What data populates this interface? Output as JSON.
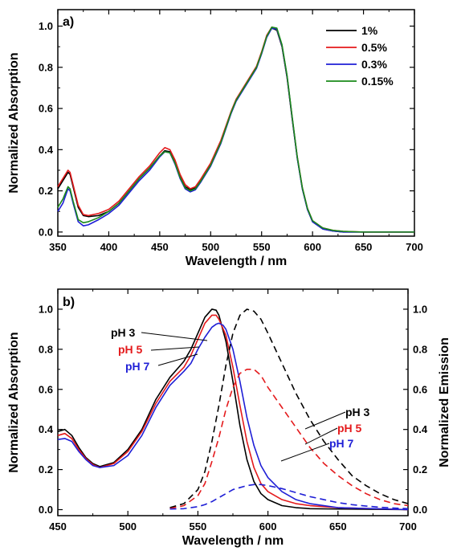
{
  "chart_data": [
    {
      "type": "line",
      "panel_label": "a)",
      "xlabel": "Wavelength / nm",
      "ylabel": "Normalized Absorption",
      "xlim": [
        350,
        700
      ],
      "ylim": [
        -0.02,
        1.08
      ],
      "xticks": [
        350,
        400,
        450,
        500,
        550,
        600,
        650,
        700
      ],
      "yticks": [
        0.0,
        0.2,
        0.4,
        0.6,
        0.8,
        1.0
      ],
      "ytick_labels": [
        "0.0",
        "0.2",
        "0.4",
        "0.6",
        "0.8",
        "1.0"
      ],
      "grid": false,
      "legend_position": "top-right",
      "series": [
        {
          "name": "1%",
          "color": "#000000",
          "x": [
            350,
            355,
            360,
            362,
            365,
            370,
            375,
            380,
            390,
            400,
            410,
            420,
            430,
            440,
            450,
            455,
            460,
            465,
            470,
            475,
            480,
            485,
            490,
            500,
            510,
            520,
            525,
            530,
            540,
            545,
            550,
            555,
            560,
            565,
            570,
            575,
            580,
            585,
            590,
            595,
            600,
            610,
            620,
            630,
            650,
            670,
            700
          ],
          "y": [
            0.21,
            0.25,
            0.29,
            0.28,
            0.22,
            0.12,
            0.08,
            0.075,
            0.08,
            0.1,
            0.14,
            0.2,
            0.26,
            0.31,
            0.37,
            0.395,
            0.39,
            0.34,
            0.27,
            0.22,
            0.205,
            0.215,
            0.25,
            0.33,
            0.44,
            0.58,
            0.64,
            0.68,
            0.76,
            0.8,
            0.87,
            0.95,
            0.99,
            0.98,
            0.9,
            0.75,
            0.55,
            0.36,
            0.21,
            0.11,
            0.05,
            0.015,
            0.005,
            0.0,
            0.0,
            0.0,
            0.0
          ]
        },
        {
          "name": "0.5%",
          "color": "#e41a1c",
          "x": [
            350,
            355,
            360,
            362,
            365,
            370,
            375,
            380,
            390,
            400,
            410,
            420,
            430,
            440,
            450,
            455,
            460,
            465,
            470,
            475,
            480,
            485,
            490,
            500,
            510,
            520,
            525,
            530,
            540,
            545,
            550,
            555,
            560,
            565,
            570,
            575,
            580,
            585,
            590,
            595,
            600,
            610,
            620,
            630,
            650,
            670,
            700
          ],
          "y": [
            0.22,
            0.26,
            0.3,
            0.29,
            0.23,
            0.13,
            0.085,
            0.08,
            0.09,
            0.11,
            0.15,
            0.21,
            0.27,
            0.32,
            0.385,
            0.41,
            0.4,
            0.35,
            0.28,
            0.23,
            0.21,
            0.22,
            0.255,
            0.335,
            0.445,
            0.585,
            0.645,
            0.685,
            0.765,
            0.805,
            0.875,
            0.955,
            0.995,
            0.985,
            0.905,
            0.755,
            0.555,
            0.365,
            0.215,
            0.115,
            0.055,
            0.02,
            0.008,
            0.003,
            0.0,
            0.0,
            0.0
          ]
        },
        {
          "name": "0.3%",
          "color": "#1f1fd6",
          "x": [
            350,
            355,
            360,
            362,
            365,
            370,
            375,
            380,
            390,
            400,
            410,
            420,
            430,
            440,
            450,
            455,
            460,
            465,
            470,
            475,
            480,
            485,
            490,
            500,
            510,
            520,
            525,
            530,
            540,
            545,
            550,
            555,
            560,
            565,
            570,
            575,
            580,
            585,
            590,
            595,
            600,
            610,
            620,
            630,
            650,
            670,
            700
          ],
          "y": [
            0.1,
            0.14,
            0.21,
            0.2,
            0.14,
            0.05,
            0.03,
            0.035,
            0.06,
            0.09,
            0.13,
            0.19,
            0.25,
            0.3,
            0.365,
            0.39,
            0.385,
            0.33,
            0.26,
            0.21,
            0.195,
            0.205,
            0.24,
            0.32,
            0.43,
            0.575,
            0.635,
            0.675,
            0.755,
            0.795,
            0.865,
            0.945,
            0.99,
            0.985,
            0.905,
            0.755,
            0.555,
            0.36,
            0.21,
            0.11,
            0.05,
            0.015,
            0.005,
            0.0,
            0.0,
            0.0,
            0.0
          ]
        },
        {
          "name": "0.15%",
          "color": "#1a8a1a",
          "x": [
            350,
            355,
            360,
            362,
            365,
            370,
            375,
            380,
            390,
            400,
            410,
            420,
            430,
            440,
            450,
            455,
            460,
            465,
            470,
            475,
            480,
            485,
            490,
            500,
            510,
            520,
            525,
            530,
            540,
            545,
            550,
            555,
            560,
            565,
            570,
            575,
            580,
            585,
            590,
            595,
            600,
            610,
            620,
            630,
            650,
            670,
            700
          ],
          "y": [
            0.12,
            0.16,
            0.22,
            0.21,
            0.15,
            0.06,
            0.045,
            0.05,
            0.07,
            0.1,
            0.14,
            0.2,
            0.26,
            0.31,
            0.37,
            0.39,
            0.385,
            0.335,
            0.265,
            0.215,
            0.2,
            0.21,
            0.245,
            0.325,
            0.435,
            0.58,
            0.64,
            0.68,
            0.76,
            0.8,
            0.87,
            0.95,
            0.995,
            0.99,
            0.91,
            0.76,
            0.56,
            0.365,
            0.215,
            0.115,
            0.055,
            0.02,
            0.008,
            0.003,
            0.0,
            0.0,
            0.0
          ]
        }
      ]
    },
    {
      "type": "line",
      "panel_label": "b)",
      "xlabel": "Wavelength / nm",
      "ylabel": "Normalized Absorption",
      "y2label": "Normalized Emission",
      "xlim": [
        450,
        700
      ],
      "ylim": [
        -0.03,
        1.1
      ],
      "xticks": [
        450,
        500,
        550,
        600,
        650,
        700
      ],
      "yticks": [
        0.0,
        0.2,
        0.4,
        0.6,
        0.8,
        1.0
      ],
      "ytick_labels": [
        "0.0",
        "0.2",
        "0.4",
        "0.6",
        "0.8",
        "1.0"
      ],
      "grid": false,
      "absorption_labels": [
        {
          "text": "pH 3",
          "color": "#000000"
        },
        {
          "text": "pH 5",
          "color": "#e41a1c"
        },
        {
          "text": "pH 7",
          "color": "#1f1fd6"
        }
      ],
      "emission_labels": [
        {
          "text": "pH 3",
          "color": "#000000"
        },
        {
          "text": "pH 5",
          "color": "#e41a1c"
        },
        {
          "text": "pH 7",
          "color": "#1f1fd6"
        }
      ],
      "series": [
        {
          "name": "pH 3",
          "kind": "absorption",
          "color": "#000000",
          "dash": false,
          "x": [
            450,
            455,
            460,
            465,
            470,
            475,
            480,
            490,
            500,
            510,
            520,
            530,
            540,
            545,
            550,
            555,
            560,
            563,
            565,
            570,
            575,
            580,
            585,
            590,
            595,
            600,
            610,
            620,
            630,
            650,
            700
          ],
          "y": [
            0.39,
            0.4,
            0.37,
            0.31,
            0.26,
            0.23,
            0.215,
            0.235,
            0.3,
            0.4,
            0.55,
            0.66,
            0.74,
            0.8,
            0.88,
            0.96,
            1.0,
            0.995,
            0.97,
            0.84,
            0.64,
            0.42,
            0.25,
            0.14,
            0.08,
            0.05,
            0.02,
            0.01,
            0.005,
            0.003,
            0.0
          ]
        },
        {
          "name": "pH 5",
          "kind": "absorption",
          "color": "#e41a1c",
          "dash": false,
          "x": [
            450,
            455,
            460,
            465,
            470,
            475,
            480,
            490,
            500,
            510,
            520,
            530,
            540,
            545,
            550,
            555,
            560,
            563,
            565,
            570,
            575,
            580,
            585,
            590,
            595,
            600,
            610,
            620,
            630,
            650,
            700
          ],
          "y": [
            0.37,
            0.38,
            0.355,
            0.3,
            0.255,
            0.225,
            0.21,
            0.23,
            0.29,
            0.39,
            0.53,
            0.64,
            0.71,
            0.77,
            0.85,
            0.93,
            0.97,
            0.97,
            0.95,
            0.87,
            0.71,
            0.52,
            0.34,
            0.21,
            0.13,
            0.09,
            0.05,
            0.03,
            0.02,
            0.01,
            0.0
          ]
        },
        {
          "name": "pH 7",
          "kind": "absorption",
          "color": "#1f1fd6",
          "dash": false,
          "x": [
            450,
            455,
            460,
            465,
            470,
            475,
            480,
            490,
            500,
            510,
            520,
            530,
            540,
            545,
            550,
            555,
            560,
            563,
            565,
            568,
            570,
            575,
            580,
            585,
            590,
            595,
            600,
            610,
            620,
            630,
            650,
            700
          ],
          "y": [
            0.35,
            0.355,
            0.34,
            0.29,
            0.25,
            0.22,
            0.21,
            0.22,
            0.27,
            0.37,
            0.51,
            0.62,
            0.69,
            0.73,
            0.8,
            0.86,
            0.91,
            0.925,
            0.93,
            0.92,
            0.9,
            0.8,
            0.64,
            0.46,
            0.32,
            0.22,
            0.16,
            0.09,
            0.05,
            0.03,
            0.01,
            0.0
          ]
        },
        {
          "name": "pH 3",
          "kind": "emission",
          "color": "#000000",
          "dash": true,
          "x": [
            530,
            540,
            550,
            555,
            560,
            565,
            570,
            575,
            580,
            585,
            590,
            595,
            600,
            610,
            620,
            630,
            640,
            650,
            660,
            670,
            680,
            690,
            700
          ],
          "y": [
            0.01,
            0.03,
            0.1,
            0.19,
            0.34,
            0.52,
            0.72,
            0.88,
            0.97,
            1.0,
            0.99,
            0.95,
            0.88,
            0.73,
            0.58,
            0.45,
            0.34,
            0.25,
            0.17,
            0.12,
            0.08,
            0.05,
            0.03
          ]
        },
        {
          "name": "pH 5",
          "kind": "emission",
          "color": "#e41a1c",
          "dash": true,
          "x": [
            530,
            540,
            550,
            555,
            560,
            565,
            570,
            575,
            580,
            585,
            590,
            595,
            600,
            610,
            620,
            630,
            640,
            650,
            660,
            670,
            680,
            690,
            700
          ],
          "y": [
            0.005,
            0.02,
            0.07,
            0.13,
            0.24,
            0.36,
            0.5,
            0.61,
            0.68,
            0.7,
            0.7,
            0.67,
            0.61,
            0.51,
            0.41,
            0.31,
            0.23,
            0.17,
            0.12,
            0.08,
            0.05,
            0.03,
            0.02
          ]
        },
        {
          "name": "pH 7",
          "kind": "emission",
          "color": "#1f1fd6",
          "dash": true,
          "x": [
            530,
            540,
            550,
            555,
            560,
            565,
            570,
            575,
            580,
            585,
            590,
            595,
            600,
            610,
            620,
            630,
            640,
            650,
            660,
            670,
            680,
            690,
            700
          ],
          "y": [
            0.003,
            0.005,
            0.015,
            0.025,
            0.04,
            0.06,
            0.08,
            0.1,
            0.11,
            0.12,
            0.125,
            0.125,
            0.12,
            0.105,
            0.085,
            0.065,
            0.05,
            0.035,
            0.025,
            0.018,
            0.012,
            0.008,
            0.005
          ]
        }
      ]
    }
  ]
}
